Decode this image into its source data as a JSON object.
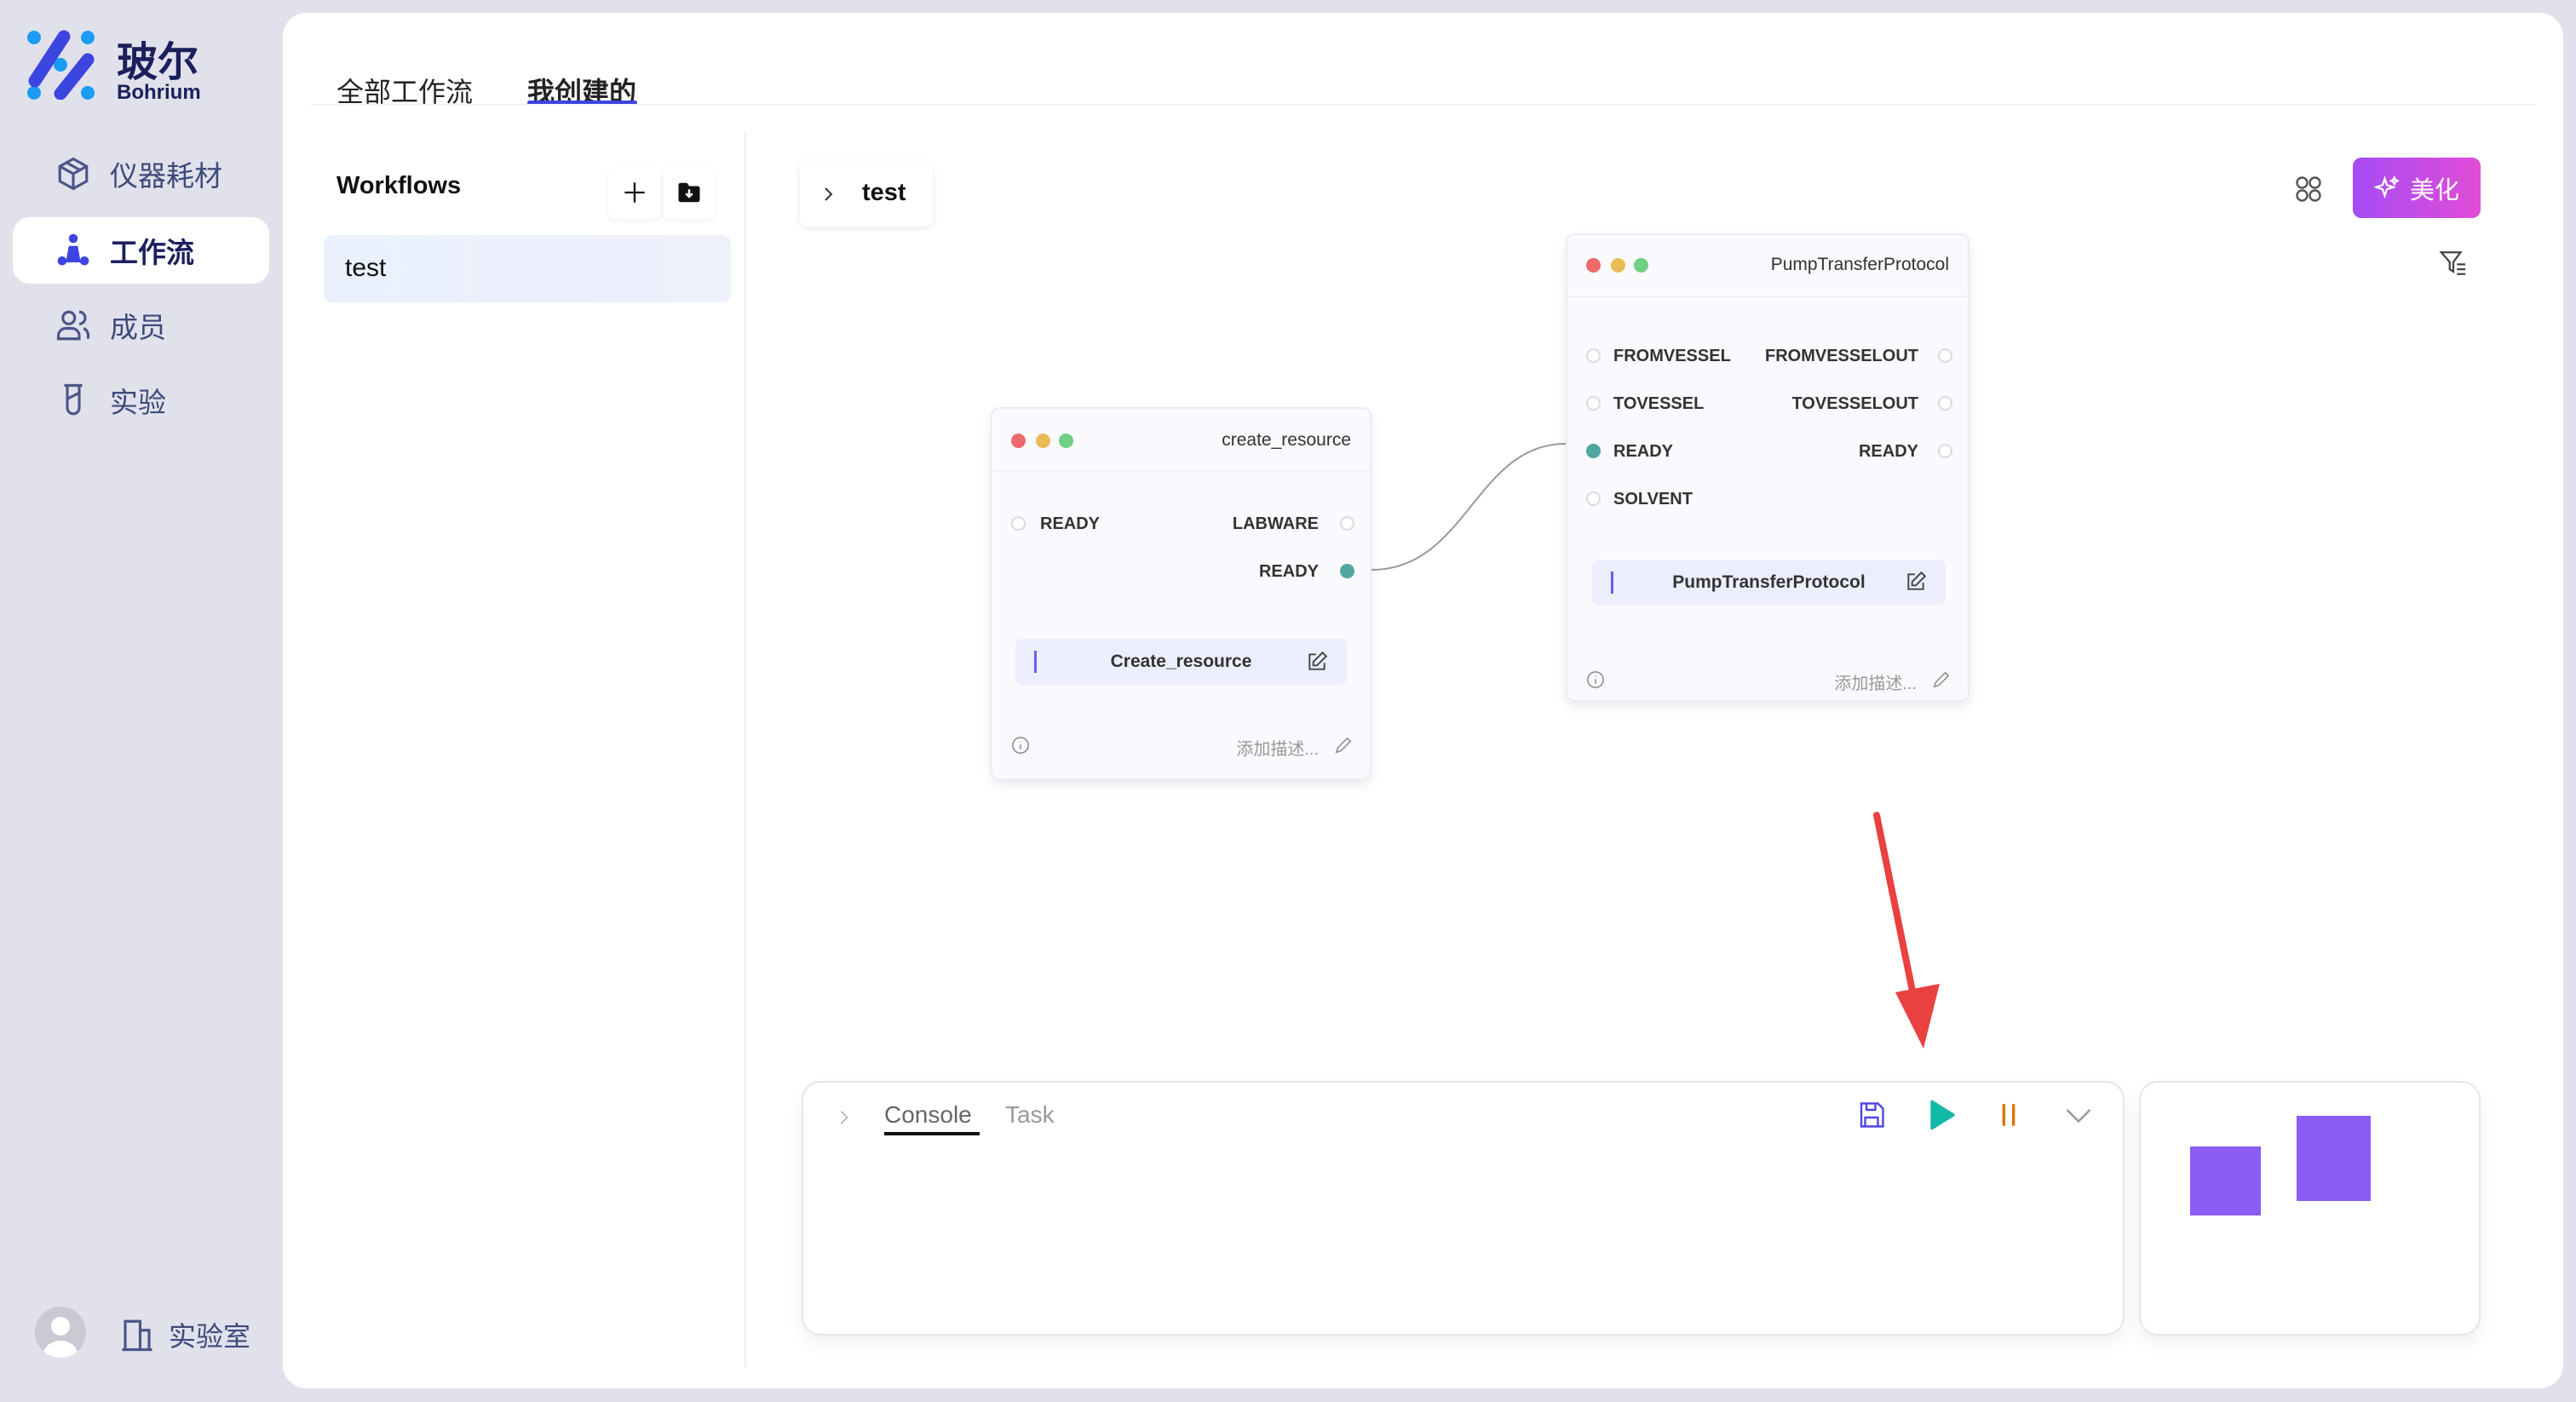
{
  "brand": {
    "name_cn": "玻尔",
    "name_en": "Bohrium"
  },
  "sidebar": {
    "items": [
      {
        "label": "仪器耗材",
        "icon": "cube-icon",
        "active": false
      },
      {
        "label": "工作流",
        "icon": "workflow-icon",
        "active": true
      },
      {
        "label": "成员",
        "icon": "members-icon",
        "active": false
      },
      {
        "label": "实验",
        "icon": "test-tube-icon",
        "active": false
      }
    ],
    "footer": {
      "lab_label": "实验室"
    }
  },
  "tabs": [
    {
      "label": "全部工作流",
      "active": false
    },
    {
      "label": "我创建的",
      "active": true
    }
  ],
  "workflows": {
    "title": "Workflows",
    "items": [
      {
        "label": "test",
        "selected": true
      }
    ]
  },
  "canvas": {
    "breadcrumb": "test",
    "beautify_label": "美化",
    "nodes": [
      {
        "title": "create_resource",
        "inputs": [
          "READY"
        ],
        "outputs": [
          "LABWARE",
          "READY"
        ],
        "connected_outputs": [
          "READY"
        ],
        "name": "Create_resource",
        "description_placeholder": "添加描述..."
      },
      {
        "title": "PumpTransferProtocol",
        "inputs": [
          "FROMVESSEL",
          "TOVESSEL",
          "READY",
          "SOLVENT"
        ],
        "outputs": [
          "FROMVESSELOUT",
          "TOVESSELOUT",
          "READY"
        ],
        "connected_inputs": [
          "READY"
        ],
        "name": "PumpTransferProtocol",
        "description_placeholder": "添加描述..."
      }
    ]
  },
  "console": {
    "tabs": [
      {
        "label": "Console",
        "active": true
      },
      {
        "label": "Task",
        "active": false
      }
    ]
  },
  "colors": {
    "accent": "#3d45e0",
    "port_connected": "#4fa7a0",
    "play": "#14b8a6",
    "pause": "#d97706",
    "minimap": "#8b5cf6",
    "arrow": "#e94040"
  }
}
